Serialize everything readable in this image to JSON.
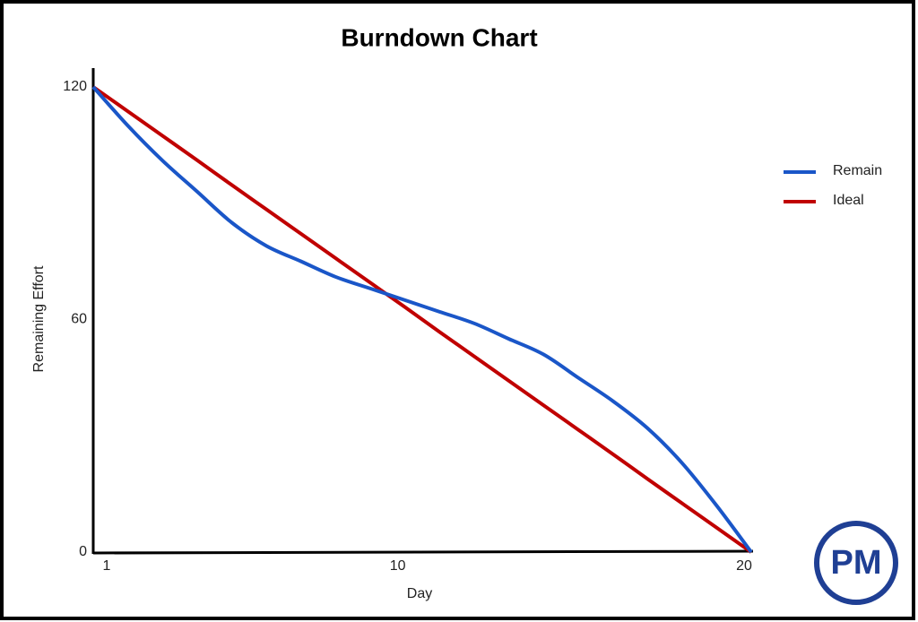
{
  "chart_data": {
    "type": "line",
    "title": "Burndown Chart",
    "x_label": "Day",
    "y_label": "Remaining Effort",
    "x": [
      1,
      2,
      3,
      4,
      5,
      6,
      7,
      8,
      9,
      10,
      11,
      12,
      13,
      14,
      15,
      16,
      17,
      18,
      19,
      20
    ],
    "series": [
      {
        "name": "Remain",
        "color": "#1a56c8",
        "values": [
          120,
          110,
          101,
          93,
          85,
          79,
          75,
          71,
          68,
          65,
          62,
          59,
          55,
          51,
          45,
          39,
          32,
          23,
          12,
          0
        ]
      },
      {
        "name": "Ideal",
        "color": "#c00000",
        "values": [
          120,
          113.7,
          107.4,
          101.1,
          94.7,
          88.4,
          82.1,
          75.8,
          69.5,
          63.2,
          56.8,
          50.5,
          44.2,
          37.9,
          31.6,
          25.3,
          18.9,
          12.6,
          6.3,
          0
        ]
      }
    ],
    "xlim": [
      1,
      20
    ],
    "xticks": [
      1,
      10,
      20
    ],
    "ylim": [
      0,
      120
    ],
    "yticks": [
      0,
      60,
      120
    ],
    "grid": false,
    "legend": "right"
  },
  "logo": {
    "text": "PM"
  }
}
